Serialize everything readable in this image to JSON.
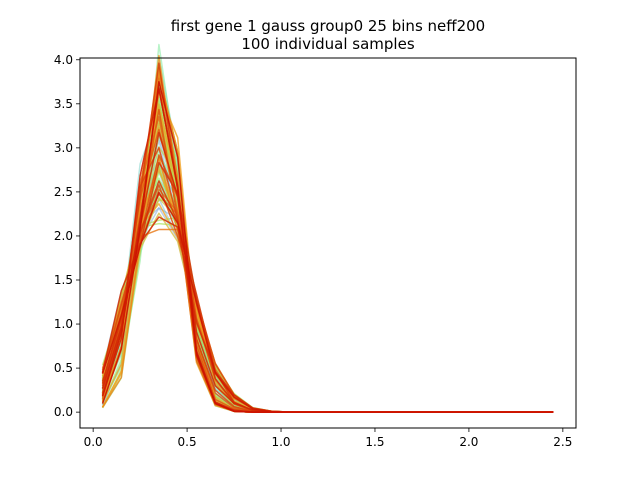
{
  "chart_data": {
    "type": "line",
    "title": "first gene 1 gauss group0 25 bins neff200",
    "subtitle": "100 individual samples",
    "xlabel": "",
    "ylabel": "",
    "xlim": [
      -0.07,
      2.57
    ],
    "ylim": [
      -0.18,
      4.02
    ],
    "xticks": [
      0.0,
      0.5,
      1.0,
      1.5,
      2.0,
      2.5
    ],
    "xtick_labels": [
      "0.0",
      "0.5",
      "1.0",
      "1.5",
      "2.0",
      "2.5"
    ],
    "yticks": [
      0.0,
      0.5,
      1.0,
      1.5,
      2.0,
      2.5,
      3.0,
      3.5,
      4.0
    ],
    "ytick_labels": [
      "0.0",
      "0.5",
      "1.0",
      "1.5",
      "2.0",
      "2.5",
      "3.0",
      "3.5",
      "4.0"
    ],
    "grid": false,
    "legend": false,
    "x": [
      0.05,
      0.15,
      0.25,
      0.35,
      0.45,
      0.55,
      0.65,
      0.75,
      0.85,
      0.95,
      1.05,
      1.15,
      1.25,
      1.35,
      1.45,
      1.55,
      1.65,
      1.75,
      1.85,
      1.95,
      2.05,
      2.15,
      2.25,
      2.35,
      2.45
    ],
    "series_count": 100,
    "series_color_range": [
      "#6a8ed6",
      "#7fe8c0",
      "#9ef06a",
      "#f2a020",
      "#cc1100"
    ],
    "series_sample": [
      {
        "color": "#6a8ed6",
        "values": [
          0.05,
          0.42,
          1.9,
          3.82,
          2.85,
          0.82,
          0.12,
          0.01,
          0.0,
          0.0,
          0.0,
          0.0,
          0.0,
          0.0,
          0.0,
          0.0,
          0.0,
          0.0,
          0.0,
          0.0,
          0.0,
          0.0,
          0.0,
          0.0,
          0.0
        ]
      },
      {
        "color": "#7fe8c0",
        "values": [
          0.5,
          1.3,
          1.95,
          2.3,
          2.05,
          1.15,
          0.52,
          0.2,
          0.05,
          0.01,
          0.0,
          0.0,
          0.0,
          0.0,
          0.0,
          0.0,
          0.0,
          0.0,
          0.0,
          0.0,
          0.0,
          0.0,
          0.0,
          0.0,
          0.0
        ]
      },
      {
        "color": "#9ef06a",
        "values": [
          0.35,
          1.1,
          2.1,
          2.6,
          2.2,
          1.25,
          0.45,
          0.12,
          0.02,
          0.0,
          0.0,
          0.0,
          0.0,
          0.0,
          0.0,
          0.0,
          0.0,
          0.0,
          0.0,
          0.0,
          0.0,
          0.0,
          0.0,
          0.0,
          0.0
        ]
      },
      {
        "color": "#f2a020",
        "values": [
          0.15,
          0.9,
          2.7,
          3.5,
          2.45,
          0.6,
          0.08,
          0.01,
          0.0,
          0.0,
          0.0,
          0.0,
          0.0,
          0.0,
          0.0,
          0.0,
          0.0,
          0.0,
          0.0,
          0.0,
          0.0,
          0.0,
          0.0,
          0.0,
          0.0
        ]
      },
      {
        "color": "#cc1100",
        "values": [
          0.2,
          0.95,
          2.3,
          3.7,
          2.5,
          0.7,
          0.1,
          0.01,
          0.0,
          0.0,
          0.0,
          0.0,
          0.0,
          0.0,
          0.0,
          0.0,
          0.0,
          0.0,
          0.0,
          0.0,
          0.0,
          0.0,
          0.0,
          0.0,
          0.0
        ]
      }
    ]
  }
}
